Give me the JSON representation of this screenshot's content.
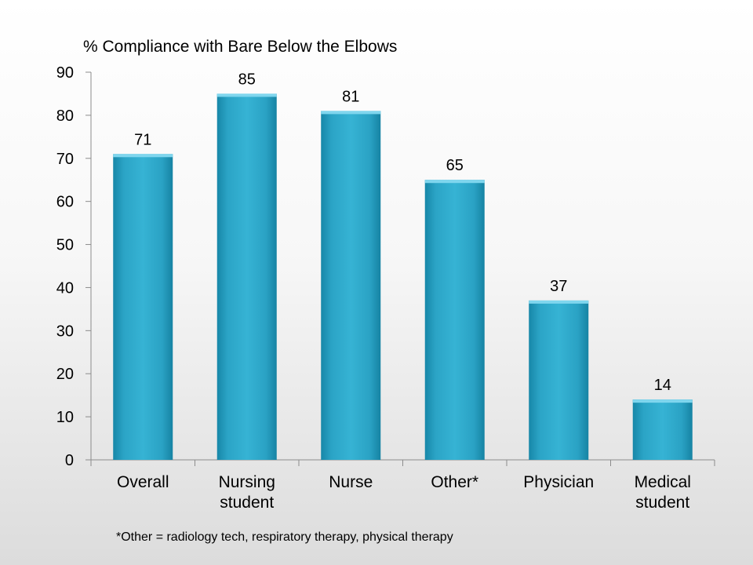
{
  "chart_data": {
    "type": "bar",
    "title": "% Compliance with Bare Below the Elbows",
    "xlabel": "",
    "ylabel": "",
    "categories": [
      "Overall",
      "Nursing student",
      "Nurse",
      "Other*",
      "Physician",
      "Medical student"
    ],
    "category_lines": [
      [
        "Overall"
      ],
      [
        "Nursing",
        "student"
      ],
      [
        "Nurse"
      ],
      [
        "Other*"
      ],
      [
        "Physician"
      ],
      [
        "Medical",
        "student"
      ]
    ],
    "values": [
      71,
      85,
      81,
      65,
      37,
      14
    ],
    "ylim": [
      0,
      90
    ],
    "yticks": [
      0,
      10,
      20,
      30,
      40,
      50,
      60,
      70,
      80,
      90
    ],
    "grid": false,
    "legend": "none",
    "data_labels": true,
    "bar_color": "#2aa6c8",
    "footnote": "*Other = radiology tech, respiratory therapy, physical therapy"
  }
}
